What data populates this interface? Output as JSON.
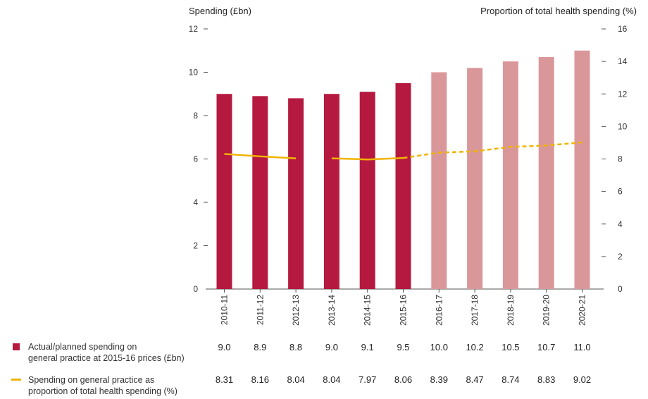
{
  "titles": {
    "left_axis": "Spending (£bn)",
    "right_axis": "Proportion of total health spending (%)"
  },
  "legend": {
    "spending_line1": "Actual/planned spending on",
    "spending_line2": "general practice at 2015-16 prices (£bn)",
    "proportion_line1": "Spending on general practice as",
    "proportion_line2": "proportion of total health spending (%)"
  },
  "colors": {
    "actual_bar": "#b5193f",
    "planned_bar": "#da979a",
    "line": "#f0b400"
  },
  "chart_data": {
    "type": "bar",
    "categories": [
      "2010-11",
      "2011-12",
      "2012-13",
      "2013-14",
      "2014-15",
      "2015-16",
      "2016-17",
      "2017-18",
      "2018-19",
      "2019-20",
      "2020-21"
    ],
    "series": [
      {
        "name": "Actual/planned spending on general practice at 2015-16 prices (£bn)",
        "axis": "left",
        "values": [
          9.0,
          8.9,
          8.8,
          9.0,
          9.1,
          9.5,
          10.0,
          10.2,
          10.5,
          10.7,
          11.0
        ],
        "table_labels": [
          "9.0",
          "8.9",
          "8.8",
          "9.0",
          "9.1",
          "9.5",
          "10.0",
          "10.2",
          "10.5",
          "10.7",
          "11.0"
        ],
        "planned_from_index": 6
      },
      {
        "name": "Spending on general practice as proportion of total health spending (%)",
        "axis": "right",
        "type": "line",
        "values": [
          8.31,
          8.16,
          8.04,
          8.04,
          7.97,
          8.06,
          8.39,
          8.47,
          8.74,
          8.83,
          9.02
        ],
        "table_labels": [
          "8.31",
          "8.16",
          "8.04",
          "8.04",
          "7.97",
          "8.06",
          "8.39",
          "8.47",
          "8.74",
          "8.83",
          "9.02"
        ],
        "break_after_index": 2,
        "dashed_from_index": 5
      }
    ],
    "ylim_left": [
      0,
      12
    ],
    "yticks_left": [
      0,
      2,
      4,
      6,
      8,
      10,
      12
    ],
    "ylim_right": [
      0,
      16
    ],
    "yticks_right": [
      0,
      2,
      4,
      6,
      8,
      10,
      12,
      14,
      16
    ],
    "grid": false
  }
}
